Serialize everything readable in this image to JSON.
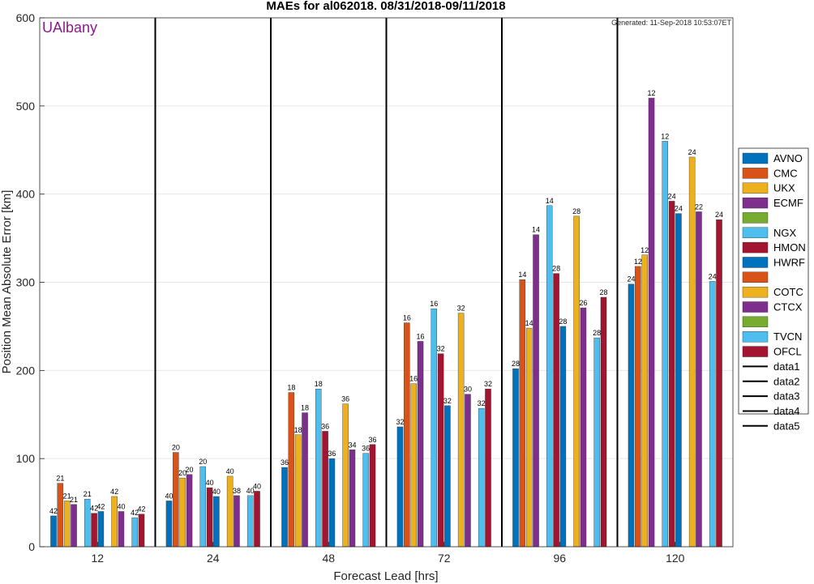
{
  "chart_data": {
    "type": "bar",
    "title": "MAEs for al062018. 08/31/2018-09/11/2018",
    "brand": "UAlbany",
    "brand_color": "#8b1a8b",
    "generated": "Generated: 11-Sep-2018 10:53:07ET",
    "xlabel": "Forecast Lead [hrs]",
    "ylabel": "Position Mean Absolute Error [km]",
    "ylim": [
      0,
      600
    ],
    "yticks": [
      0,
      100,
      200,
      300,
      400,
      500,
      600
    ],
    "grid": true,
    "legend_position": "right",
    "categories": [
      "12",
      "24",
      "48",
      "72",
      "96",
      "120"
    ],
    "series": [
      {
        "name": "AVNO",
        "color": "#0072BD",
        "values": [
          35,
          52,
          90,
          136,
          202,
          298
        ],
        "counts": [
          "42",
          "40",
          "36",
          "32",
          "28",
          "24"
        ]
      },
      {
        "name": "CMC",
        "color": "#D95319",
        "values": [
          72,
          107,
          175,
          254,
          303,
          318
        ],
        "counts": [
          "21",
          "20",
          "18",
          "16",
          "14",
          "12"
        ]
      },
      {
        "name": "UKX",
        "color": "#EDB120",
        "values": [
          52,
          78,
          127,
          185,
          248,
          331
        ],
        "counts": [
          "21",
          "20",
          "18",
          "16",
          "14",
          "12"
        ]
      },
      {
        "name": "ECMF",
        "color": "#7E2F8E",
        "values": [
          48,
          82,
          152,
          233,
          354,
          509
        ],
        "counts": [
          "21",
          "20",
          "18",
          "16",
          "14",
          "12"
        ]
      },
      {
        "name": "",
        "color": "#77AC30",
        "values": [
          null,
          null,
          null,
          null,
          null,
          null
        ],
        "counts": [
          "",
          "",
          "",
          "",
          "",
          ""
        ]
      },
      {
        "name": "NGX",
        "color": "#4DBEEE",
        "values": [
          54,
          91,
          179,
          270,
          387,
          460
        ],
        "counts": [
          "21",
          "20",
          "18",
          "16",
          "14",
          "12"
        ]
      },
      {
        "name": "HMON",
        "color": "#A2142F",
        "values": [
          38,
          67,
          131,
          219,
          310,
          392
        ],
        "counts": [
          "42",
          "40",
          "36",
          "32",
          "28",
          "24"
        ]
      },
      {
        "name": "HWRF",
        "color": "#0072BD",
        "values": [
          40,
          57,
          100,
          160,
          250,
          378
        ],
        "counts": [
          "42",
          "40",
          "36",
          "32",
          "28",
          "24"
        ]
      },
      {
        "name": "",
        "color": "#D95319",
        "values": [
          null,
          null,
          null,
          null,
          null,
          null
        ],
        "counts": [
          "",
          "",
          "",
          "",
          "",
          ""
        ]
      },
      {
        "name": "COTC",
        "color": "#EDB120",
        "values": [
          57,
          80,
          162,
          265,
          375,
          442
        ],
        "counts": [
          "42",
          "40",
          "36",
          "32",
          "28",
          "24"
        ]
      },
      {
        "name": "CTCX",
        "color": "#7E2F8E",
        "values": [
          40,
          58,
          110,
          173,
          271,
          380
        ],
        "counts": [
          "40",
          "38",
          "34",
          "30",
          "26",
          "22"
        ]
      },
      {
        "name": "",
        "color": "#77AC30",
        "values": [
          null,
          null,
          null,
          null,
          null,
          null
        ],
        "counts": [
          "",
          "",
          "",
          "",
          "",
          ""
        ]
      },
      {
        "name": "TVCN",
        "color": "#4DBEEE",
        "values": [
          33,
          58,
          106,
          157,
          237,
          301
        ],
        "counts": [
          "42",
          "40",
          "36",
          "32",
          "28",
          "24"
        ]
      },
      {
        "name": "OFCL",
        "color": "#A2142F",
        "values": [
          37,
          63,
          116,
          179,
          283,
          371
        ],
        "counts": [
          "42",
          "40",
          "36",
          "32",
          "28",
          "24"
        ]
      }
    ],
    "line_legend": [
      "data1",
      "data2",
      "data3",
      "data4",
      "data5"
    ]
  }
}
